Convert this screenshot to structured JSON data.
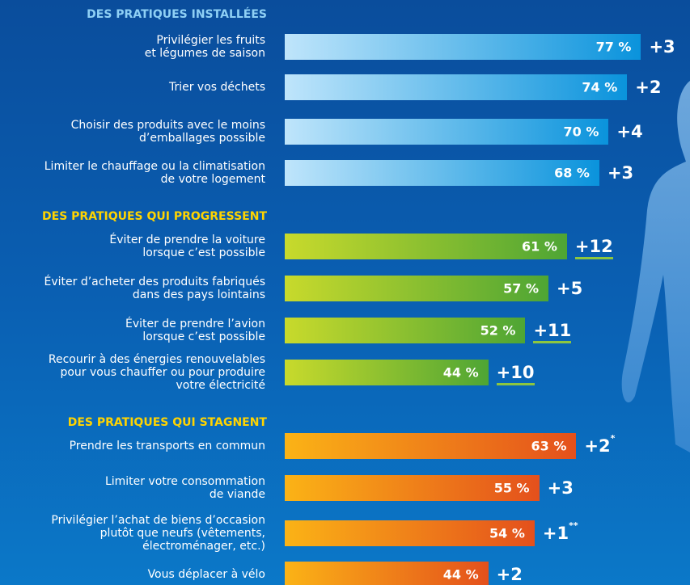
{
  "chart_data": [
    {
      "type": "bar",
      "title": "DES PRATIQUES INSTALLÉES",
      "title_color": "#8fd0f5",
      "colors": [
        "#bfe5fb",
        "#0a93dc"
      ],
      "xlim": [
        0,
        100
      ],
      "categories": [
        "Privilégier les fruits\net légumes de saison",
        "Trier vos déchets",
        "Choisir des produits avec le moins\nd’emballages possible",
        "Limiter le chauffage ou la climatisation\nde votre logement"
      ],
      "values": [
        77,
        74,
        70,
        68
      ],
      "value_labels": [
        "77 %",
        "74 %",
        "70 %",
        "68 %"
      ],
      "changes": [
        3,
        2,
        4,
        3
      ],
      "change_labels": [
        "+3",
        "+2",
        "+4",
        "+3"
      ]
    },
    {
      "type": "bar",
      "title": "DES PRATIQUES QUI PROGRESSENT",
      "title_color": "#ffd400",
      "colors": [
        "#c8da2c",
        "#4ea534"
      ],
      "xlim": [
        0,
        100
      ],
      "underline_color": "#8dc63f",
      "categories": [
        "Éviter de prendre la voiture\nlorsque c’est possible",
        "Éviter d’acheter des produits fabriqués\ndans des pays lointains",
        "Éviter de prendre l’avion\nlorsque c’est possible",
        "Recourir à des énergies renouvelables\npour vous chauffer ou pour produire\nvotre électricité"
      ],
      "values": [
        61,
        57,
        52,
        44
      ],
      "value_labels": [
        "61 %",
        "57 %",
        "52 %",
        "44 %"
      ],
      "changes": [
        12,
        5,
        11,
        10
      ],
      "change_labels": [
        "+12",
        "+5",
        "+11",
        "+10"
      ],
      "underline": [
        true,
        false,
        true,
        true
      ]
    },
    {
      "type": "bar",
      "title": "DES PRATIQUES QUI STAGNENT",
      "title_color": "#ffd400",
      "colors": [
        "#fbb316",
        "#e4501c"
      ],
      "xlim": [
        0,
        100
      ],
      "categories": [
        "Prendre les transports en commun",
        "Limiter votre consommation\nde viande",
        "Privilégier l’achat de biens d’occasion\nplutôt que neufs (vêtements,\nélectroménager, etc.)",
        "Vous déplacer à vélo"
      ],
      "values": [
        63,
        55,
        54,
        44
      ],
      "value_labels": [
        "63 %",
        "55 %",
        "54 %",
        "44 %"
      ],
      "changes": [
        2,
        3,
        1,
        2
      ],
      "change_labels": [
        "+2",
        "+3",
        "+1",
        "+2"
      ],
      "change_notes": [
        "*",
        null,
        "**",
        null
      ]
    }
  ]
}
